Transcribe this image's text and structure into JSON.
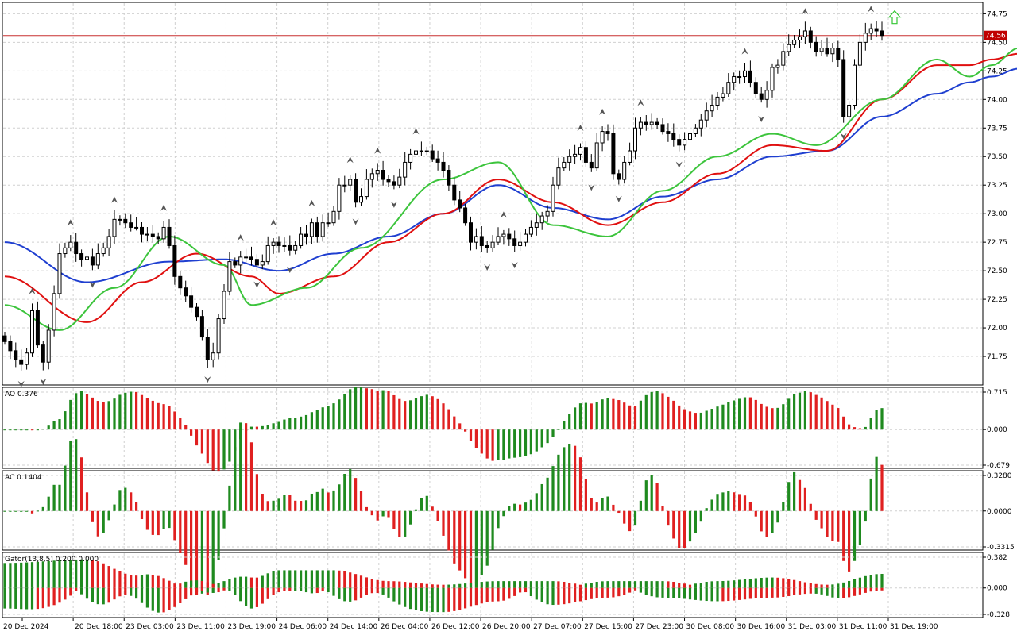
{
  "chart_data": {
    "type": "candlestick",
    "instrument_last_price": "74.56",
    "colors": {
      "background": "#ffffff",
      "grid": "#d0d0d0",
      "bull_candle": "#ffffff",
      "bear_candle": "#000000",
      "jaw": "#1f3fd0",
      "teeth": "#e01010",
      "lips": "#3cc43c",
      "current_price_line": "#c83030",
      "price_tag": "#c00000",
      "histogram_up": "#1f8a1f",
      "histogram_down": "#e02020",
      "arrow_signal": "#34c634"
    },
    "x_time_labels": [
      "20 Dec 2024",
      "20 Dec 18:00",
      "23 Dec 03:00",
      "23 Dec 11:00",
      "23 Dec 19:00",
      "24 Dec 06:00",
      "24 Dec 14:00",
      "26 Dec 04:00",
      "26 Dec 12:00",
      "26 Dec 20:00",
      "27 Dec 07:00",
      "27 Dec 15:00",
      "27 Dec 23:00",
      "30 Dec 08:00",
      "30 Dec 16:00",
      "31 Dec 03:00",
      "31 Dec 11:00",
      "31 Dec 19:00"
    ],
    "price_panel": {
      "ylim": [
        71.5,
        74.85
      ],
      "y_ticks": [
        "71.75",
        "72.00",
        "72.25",
        "72.50",
        "72.75",
        "73.00",
        "73.25",
        "73.50",
        "73.75",
        "74.00",
        "74.25",
        "74.50",
        "74.75"
      ],
      "close": [
        71.88,
        71.8,
        71.72,
        71.68,
        71.78,
        72.15,
        71.85,
        71.7,
        71.98,
        72.3,
        72.65,
        72.7,
        72.75,
        72.65,
        72.6,
        72.62,
        72.55,
        72.65,
        72.7,
        72.8,
        72.95,
        72.95,
        72.92,
        72.88,
        72.88,
        72.82,
        72.82,
        72.8,
        72.78,
        72.88,
        72.72,
        72.45,
        72.35,
        72.28,
        72.18,
        72.1,
        71.92,
        71.72,
        71.78,
        72.08,
        72.32,
        72.58,
        72.55,
        72.62,
        72.62,
        72.6,
        72.55,
        72.58,
        72.72,
        72.75,
        72.72,
        72.72,
        72.68,
        72.72,
        72.82,
        72.8,
        72.92,
        72.8,
        72.92,
        72.92,
        73.02,
        73.25,
        73.25,
        73.3,
        73.1,
        73.15,
        73.3,
        73.35,
        73.38,
        73.3,
        73.28,
        73.25,
        73.32,
        73.45,
        73.52,
        73.55,
        73.55,
        73.55,
        73.48,
        73.45,
        73.38,
        73.25,
        73.12,
        73.05,
        72.92,
        72.75,
        72.8,
        72.72,
        72.7,
        72.75,
        72.8,
        72.82,
        72.78,
        72.72,
        72.75,
        72.82,
        72.88,
        72.92,
        72.98,
        73.02,
        73.25,
        73.4,
        73.45,
        73.5,
        73.52,
        73.58,
        73.45,
        73.4,
        73.62,
        73.72,
        73.7,
        73.35,
        73.3,
        73.45,
        73.55,
        73.75,
        73.8,
        73.78,
        73.8,
        73.78,
        73.72,
        73.7,
        73.65,
        73.6,
        73.65,
        73.7,
        73.75,
        73.82,
        73.9,
        73.95,
        74.02,
        74.05,
        74.15,
        74.2,
        74.2,
        74.25,
        74.15,
        74.05,
        74.0,
        74.08,
        74.28,
        74.3,
        74.42,
        74.48,
        74.52,
        74.55,
        74.6,
        74.5,
        74.42,
        74.45,
        74.4,
        74.45,
        74.35,
        73.85,
        73.95,
        74.3,
        74.5,
        74.58,
        74.62,
        74.6,
        74.56
      ],
      "candle_range": 0.09,
      "alligator": {
        "jaw": [
          [
            0,
            72.75
          ],
          [
            15,
            72.4
          ],
          [
            30,
            72.58
          ],
          [
            40,
            72.6
          ],
          [
            50,
            72.5
          ],
          [
            60,
            72.65
          ],
          [
            70,
            72.8
          ],
          [
            80,
            73.0
          ],
          [
            90,
            73.25
          ],
          [
            100,
            73.05
          ],
          [
            110,
            72.95
          ],
          [
            120,
            73.15
          ],
          [
            130,
            73.3
          ],
          [
            140,
            73.5
          ],
          [
            150,
            73.55
          ],
          [
            160,
            73.85
          ],
          [
            170,
            74.05
          ],
          [
            176,
            74.15
          ],
          [
            180,
            74.2
          ],
          [
            185,
            74.27
          ]
        ],
        "teeth": [
          [
            0,
            72.45
          ],
          [
            15,
            72.05
          ],
          [
            25,
            72.4
          ],
          [
            35,
            72.65
          ],
          [
            45,
            72.45
          ],
          [
            50,
            72.3
          ],
          [
            60,
            72.45
          ],
          [
            70,
            72.75
          ],
          [
            80,
            73.0
          ],
          [
            90,
            73.3
          ],
          [
            100,
            73.1
          ],
          [
            110,
            72.9
          ],
          [
            120,
            73.1
          ],
          [
            130,
            73.35
          ],
          [
            140,
            73.6
          ],
          [
            150,
            73.55
          ],
          [
            160,
            74.0
          ],
          [
            170,
            74.3
          ],
          [
            176,
            74.3
          ],
          [
            180,
            74.35
          ],
          [
            185,
            74.4
          ]
        ],
        "lips": [
          [
            0,
            72.2
          ],
          [
            10,
            71.98
          ],
          [
            20,
            72.35
          ],
          [
            30,
            72.8
          ],
          [
            40,
            72.55
          ],
          [
            45,
            72.2
          ],
          [
            55,
            72.35
          ],
          [
            65,
            72.7
          ],
          [
            80,
            73.3
          ],
          [
            90,
            73.45
          ],
          [
            100,
            72.9
          ],
          [
            110,
            72.8
          ],
          [
            120,
            73.2
          ],
          [
            130,
            73.5
          ],
          [
            140,
            73.7
          ],
          [
            148,
            73.6
          ],
          [
            160,
            74.0
          ],
          [
            170,
            74.35
          ],
          [
            176,
            74.2
          ],
          [
            180,
            74.3
          ],
          [
            185,
            74.45
          ]
        ]
      }
    },
    "ao_panel": {
      "label": "AO 0.376",
      "y_ticks": [
        "0.715",
        "0.000",
        "-0.679"
      ],
      "ylim": [
        -0.679,
        0.715
      ],
      "last": 0.376
    },
    "ac_panel": {
      "label": "AC 0.1404",
      "y_ticks": [
        "0.3280",
        "0.0000",
        "-0.3315"
      ],
      "ylim": [
        -0.3315,
        0.328
      ],
      "last": 0.1404
    },
    "gator_panel": {
      "label": "Gator(13,8,5) 0.200 0.000",
      "y_ticks": [
        "0.382",
        "0.000",
        "-0.328"
      ],
      "ylim": [
        -0.328,
        0.382
      ]
    }
  }
}
